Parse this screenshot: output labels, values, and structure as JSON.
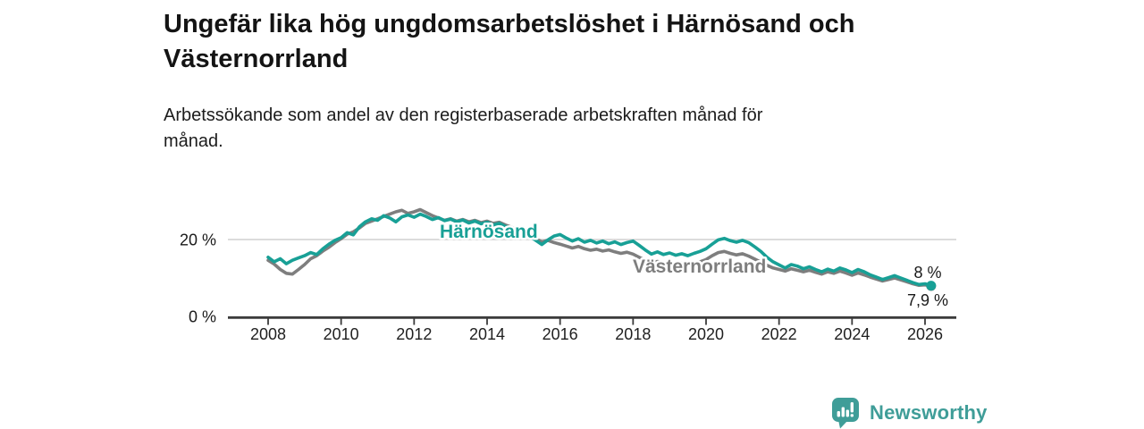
{
  "header": {
    "title_line1": "Ungefär lika hög ungdomsarbetslöshet i Härnösand och",
    "title_line2": "Västernorrland",
    "subtitle_line1": "Arbetssökande som andel av den registerbaserade arbetskraften månad för",
    "subtitle_line2": "månad."
  },
  "footer": {
    "brand": "Newsworthy",
    "logo_icon": "newsworthy-speech-bubble-bar-chart-icon",
    "brand_color": "#3f9d98"
  },
  "chart_data": {
    "type": "line",
    "title": "Ungefär lika hög ungdomsarbetslöshet i Härnösand och Västernorrland",
    "subtitle": "Arbetssökande som andel av den registerbaserade arbetskraften månad för månad.",
    "xlabel": "",
    "ylabel": "",
    "x_start": 2008,
    "x_step_years": 0.16667,
    "x_ticks": [
      2008,
      2010,
      2012,
      2014,
      2016,
      2018,
      2020,
      2022,
      2024,
      2026
    ],
    "y_ticks": [
      {
        "value": 0,
        "label": "0 %"
      },
      {
        "value": 20,
        "label": "20 %"
      }
    ],
    "ylim": [
      0,
      30
    ],
    "grid": "single-horizontal-gridline-at-20",
    "legend": "inline-series-labels",
    "colors": {
      "harnosand": "#18a096",
      "vasternorrland": "#7e7e7e",
      "gridline": "#dcdcdc",
      "axis": "#3b3b3b",
      "end_label_text": "#1a1a1a"
    },
    "series": [
      {
        "name": "Härnösand",
        "color": "#18a096",
        "end_label": "8 %",
        "end_value": 8.0,
        "values": [
          15.4,
          14.2,
          15.0,
          13.7,
          14.6,
          15.2,
          15.8,
          16.6,
          16.1,
          17.6,
          18.8,
          19.8,
          20.5,
          21.8,
          21.2,
          23.3,
          24.6,
          25.4,
          25.0,
          26.2,
          25.6,
          24.6,
          25.9,
          26.4,
          25.8,
          26.6,
          26.0,
          25.2,
          25.7,
          24.9,
          25.3,
          24.6,
          25.1,
          24.3,
          24.8,
          24.1,
          24.5,
          23.8,
          24.2,
          23.4,
          23.0,
          22.4,
          21.6,
          20.8,
          19.8,
          18.7,
          19.9,
          20.9,
          21.3,
          20.4,
          19.6,
          20.2,
          19.3,
          19.8,
          19.1,
          19.6,
          18.9,
          19.4,
          18.7,
          19.2,
          19.6,
          18.5,
          17.3,
          16.2,
          16.8,
          16.1,
          16.5,
          15.9,
          16.3,
          15.8,
          16.4,
          16.9,
          17.6,
          18.8,
          19.9,
          20.3,
          19.7,
          19.3,
          19.8,
          19.2,
          18.1,
          16.9,
          15.4,
          14.2,
          13.4,
          12.6,
          13.5,
          13.1,
          12.4,
          12.9,
          12.2,
          11.6,
          12.3,
          11.8,
          12.6,
          12.1,
          11.4,
          12.2,
          11.6,
          10.8,
          10.2,
          9.6,
          10.1,
          10.6,
          10.0,
          9.4,
          8.8,
          8.3,
          8.5,
          8.0
        ]
      },
      {
        "name": "Västernorrland",
        "color": "#7e7e7e",
        "end_label": "7,9 %",
        "end_value": 7.9,
        "values": [
          14.6,
          13.6,
          12.2,
          11.2,
          11.0,
          12.2,
          13.5,
          15.0,
          15.8,
          17.0,
          18.0,
          19.2,
          20.2,
          21.4,
          22.0,
          23.0,
          24.2,
          24.8,
          25.4,
          26.0,
          26.6,
          27.2,
          27.6,
          26.8,
          27.2,
          27.8,
          27.0,
          26.2,
          25.6,
          25.0,
          25.4,
          24.8,
          25.2,
          24.6,
          25.0,
          24.4,
          24.8,
          24.2,
          24.5,
          23.8,
          23.2,
          22.6,
          21.8,
          21.0,
          20.2,
          19.4,
          19.8,
          19.2,
          18.8,
          18.3,
          17.8,
          18.2,
          17.6,
          17.2,
          17.5,
          17.0,
          17.3,
          16.8,
          16.4,
          16.7,
          16.2,
          15.4,
          14.6,
          13.9,
          14.3,
          13.8,
          14.1,
          13.6,
          13.9,
          13.5,
          13.8,
          14.2,
          14.8,
          15.8,
          16.6,
          16.9,
          16.4,
          16.0,
          16.3,
          15.7,
          14.9,
          14.1,
          13.3,
          12.6,
          12.2,
          11.8,
          12.4,
          12.0,
          11.6,
          12.0,
          11.5,
          11.0,
          11.6,
          11.2,
          11.8,
          11.3,
          10.7,
          11.3,
          10.8,
          10.2,
          9.7,
          9.2,
          9.6,
          10.0,
          9.5,
          9.0,
          8.5,
          8.1,
          8.2,
          7.9
        ]
      }
    ]
  }
}
